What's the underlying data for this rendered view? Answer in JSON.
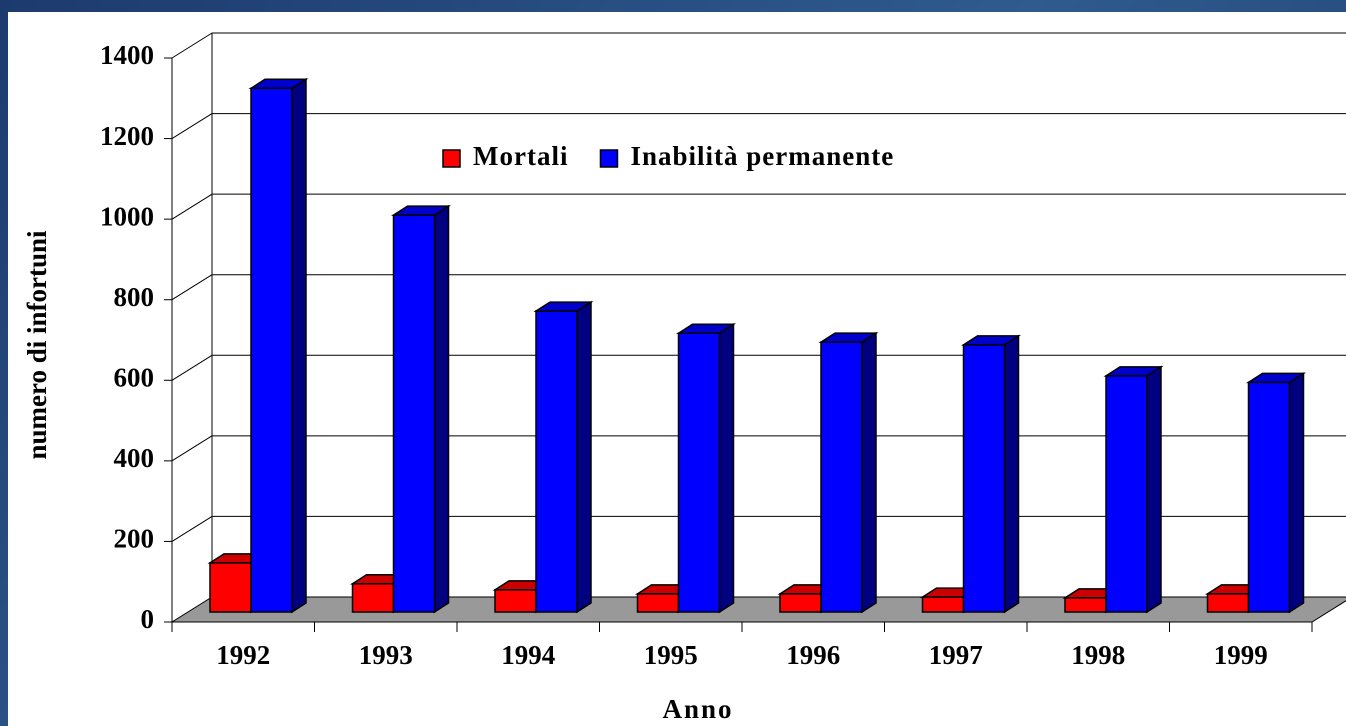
{
  "chart_data": {
    "type": "bar3d",
    "x_label": "Anno",
    "y_label": "numero di infortuni",
    "categories": [
      "1992",
      "1993",
      "1994",
      "1995",
      "1996",
      "1997",
      "1998",
      "1999"
    ],
    "series": [
      {
        "name": "Mortali",
        "color": "#ff0000",
        "values": [
          122,
          70,
          55,
          45,
          45,
          37,
          35,
          45
        ]
      },
      {
        "name": "Inabilità permanente",
        "color": "#0000ff",
        "values": [
          1300,
          985,
          747,
          692,
          670,
          663,
          586,
          570
        ]
      }
    ],
    "ylim": [
      0,
      1400
    ],
    "yticks": [
      0,
      200,
      400,
      600,
      800,
      1000,
      1200,
      1400
    ],
    "grid": true,
    "legend": "top"
  }
}
